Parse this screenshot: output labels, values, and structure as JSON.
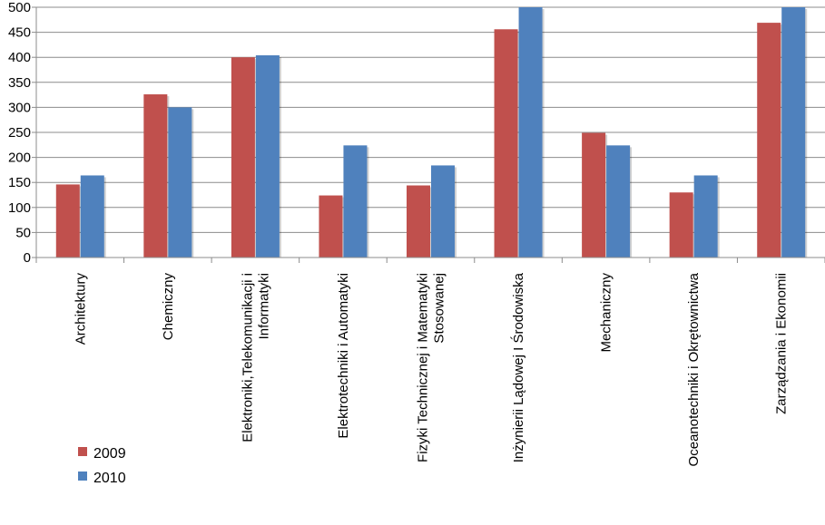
{
  "chart_data": {
    "type": "bar",
    "categories": [
      [
        "Architektury"
      ],
      [
        "Chemiczny"
      ],
      [
        "Elektroniki,Telekomunikacji i",
        "Informatyki"
      ],
      [
        "Elektrotechniki i Automatyki"
      ],
      [
        "Fizyki Technicznej i Matematyki",
        "Stosowanej"
      ],
      [
        "Inżynierii Lądowej I Środowiska"
      ],
      [
        "Mechaniczny"
      ],
      [
        "Oceanotechniki i Okrętownictwa"
      ],
      [
        "Zarządzania i Ekonomii"
      ]
    ],
    "series": [
      {
        "name": "2009",
        "color": "#c0504d",
        "values": [
          146,
          326,
          400,
          124,
          144,
          456,
          249,
          130,
          469
        ]
      },
      {
        "name": "2010",
        "color": "#4f81bd",
        "values": [
          164,
          300,
          404,
          224,
          184,
          500,
          224,
          164,
          500
        ]
      }
    ],
    "y_ticks": [
      "0",
      "50",
      "100",
      "150",
      "200",
      "250",
      "300",
      "350",
      "400",
      "450",
      "500"
    ],
    "ylim": [
      0,
      500
    ],
    "grid": true,
    "legend_position": "bottom-left"
  }
}
